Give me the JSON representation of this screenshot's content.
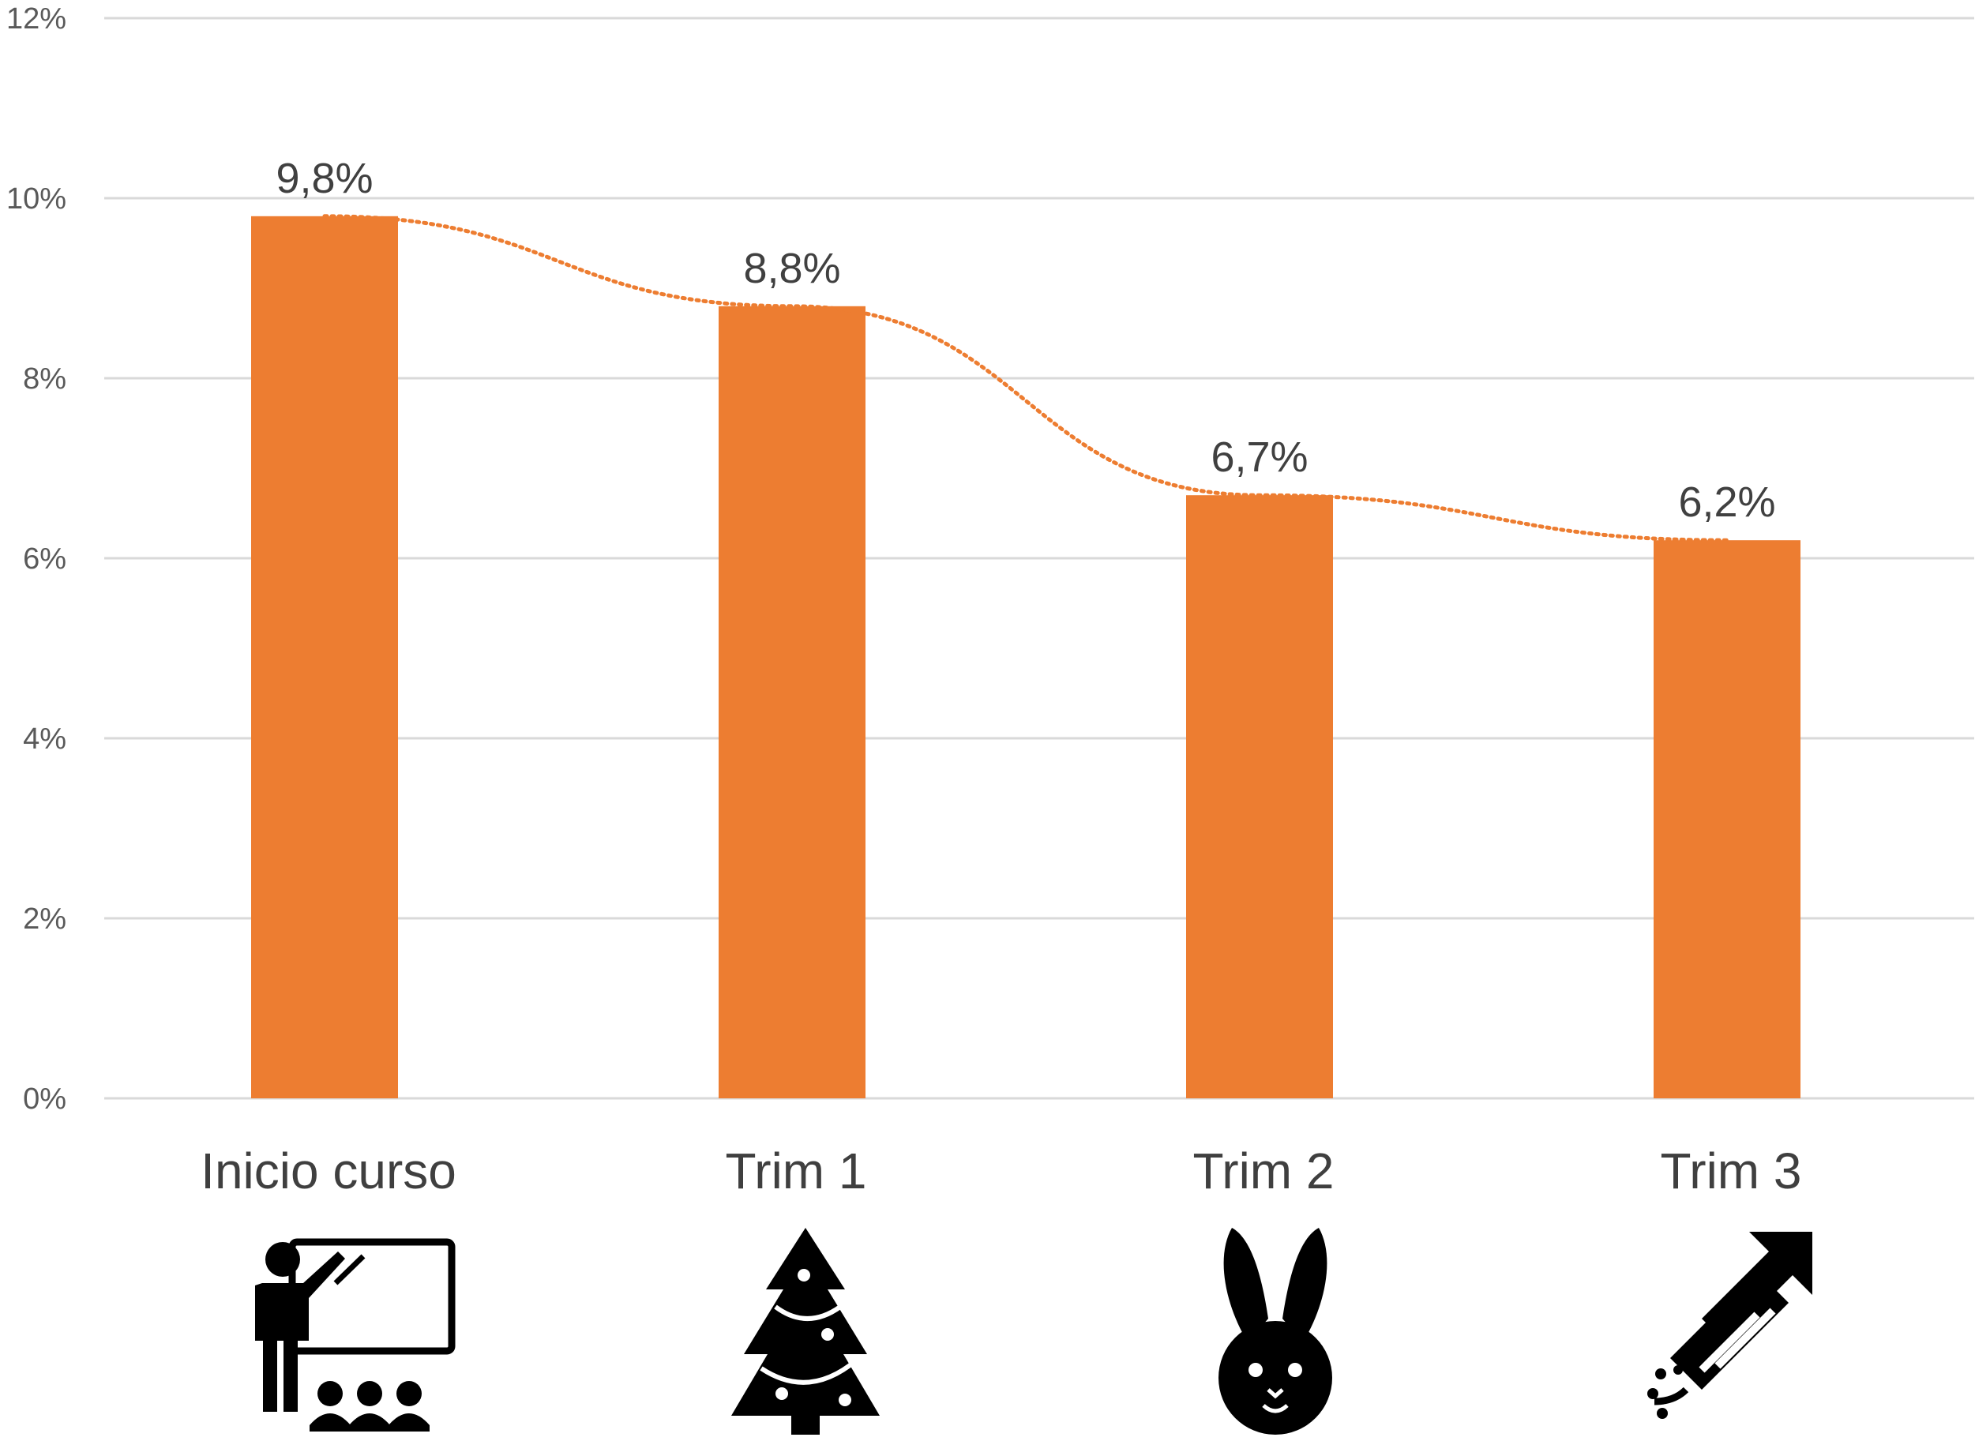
{
  "chart_data": {
    "type": "bar",
    "categories": [
      "Inicio curso",
      "Trim 1",
      "Trim 2",
      "Trim 3"
    ],
    "values": [
      9.8,
      8.8,
      6.7,
      6.2
    ],
    "data_labels": [
      "9,8%",
      "8,8%",
      "6,7%",
      "6,2%"
    ],
    "ylim": [
      0,
      12
    ],
    "y_ticks": [
      0,
      2,
      4,
      6,
      8,
      10,
      12
    ],
    "y_tick_labels": [
      "0%",
      "2%",
      "4%",
      "6%",
      "8%",
      "10%",
      "12%"
    ],
    "grid": true,
    "trendline": "dotted smooth line through bar tops",
    "category_icons": [
      "teacher-classroom-icon",
      "christmas-tree-icon",
      "rabbit-icon",
      "firework-rocket-icon"
    ],
    "colors": {
      "bar": "#ED7D31",
      "trend": "#ED7D31",
      "grid": "#D9D9D9",
      "icon": "#000000"
    }
  }
}
